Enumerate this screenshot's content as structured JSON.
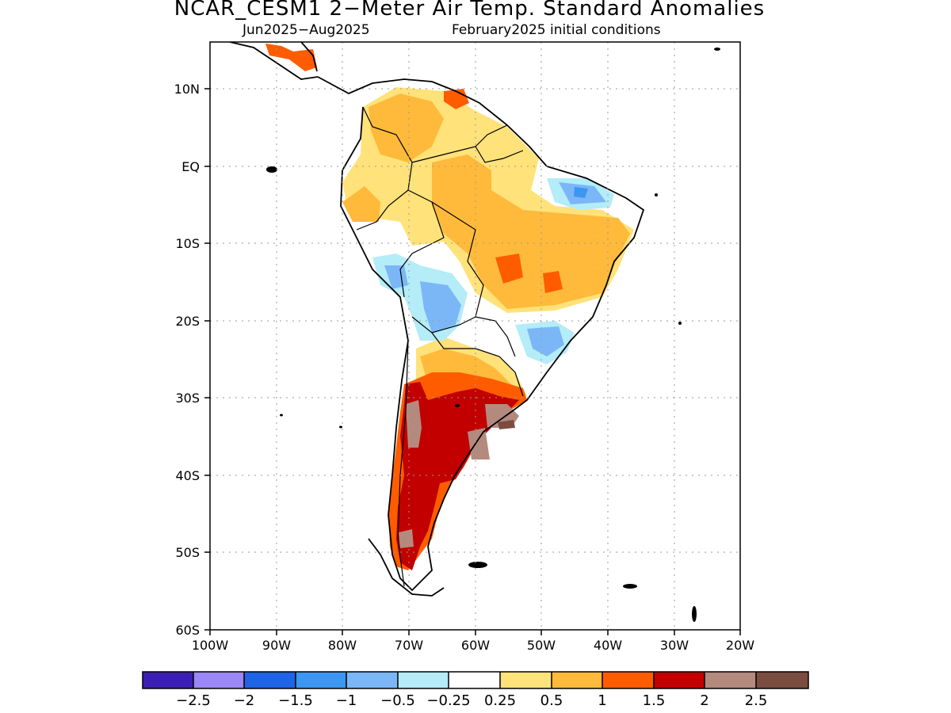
{
  "header": {
    "title": "NCAR_CESM1 2−Meter Air Temp. Standard Anomalies",
    "period": "Jun2025−Aug2025",
    "initial_conditions": "February2025 initial conditions"
  },
  "map": {
    "lon_range": [
      -100,
      -20
    ],
    "lat_range": [
      -60,
      16
    ],
    "lat_ticks": [
      {
        "value": 10,
        "label": "10N"
      },
      {
        "value": 0,
        "label": "EQ"
      },
      {
        "value": -10,
        "label": "10S"
      },
      {
        "value": -20,
        "label": "20S"
      },
      {
        "value": -30,
        "label": "30S"
      },
      {
        "value": -40,
        "label": "40S"
      },
      {
        "value": -50,
        "label": "50S"
      },
      {
        "value": -60,
        "label": "60S"
      }
    ],
    "lon_ticks": [
      {
        "value": -100,
        "label": "100W"
      },
      {
        "value": -90,
        "label": "90W"
      },
      {
        "value": -80,
        "label": "80W"
      },
      {
        "value": -70,
        "label": "70W"
      },
      {
        "value": -60,
        "label": "60W"
      },
      {
        "value": -50,
        "label": "50W"
      },
      {
        "value": -40,
        "label": "40W"
      },
      {
        "value": -30,
        "label": "30W"
      },
      {
        "value": -20,
        "label": "20W"
      }
    ],
    "grid": "dotted"
  },
  "colorbar": {
    "colors": [
      "#3b1fb5",
      "#9b87f5",
      "#1f63e6",
      "#3c96f2",
      "#7bb7f7",
      "#b4ecf8",
      "#ffffff",
      "#ffe27a",
      "#ffba3b",
      "#ff5c00",
      "#c20000",
      "#b48a7e",
      "#7b4d40"
    ],
    "labels": [
      "−2.5",
      "−2",
      "−1.5",
      "−1",
      "−0.5",
      "−0.25",
      "0.25",
      "0.5",
      "1",
      "1.5",
      "2",
      "2.5"
    ]
  }
}
